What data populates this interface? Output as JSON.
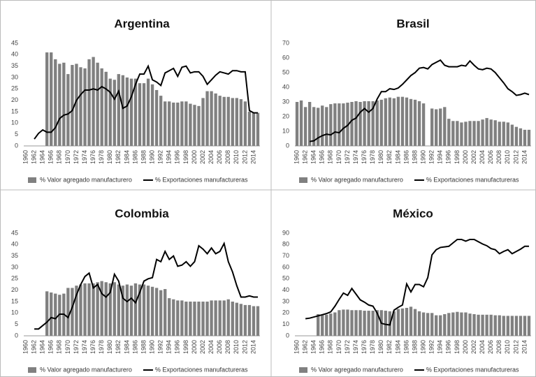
{
  "chart_data": [
    {
      "type": "combo",
      "title": "Argentina",
      "categories": [
        "1960",
        null,
        "1962",
        null,
        "1964",
        null,
        "1966",
        null,
        "1968",
        null,
        "1970",
        null,
        "1972",
        null,
        "1974",
        null,
        "1976",
        null,
        "1978",
        null,
        "1980",
        null,
        "1982",
        null,
        "1984",
        null,
        "1986",
        null,
        "1988",
        null,
        "1990",
        null,
        "1992",
        null,
        "1994",
        null,
        "1996",
        null,
        "1998",
        null,
        "2000",
        null,
        "2002",
        null,
        "2004",
        null,
        "2006",
        null,
        "2008",
        null,
        "2010",
        null,
        "2012",
        null,
        "2014",
        null
      ],
      "ylim": [
        0,
        45
      ],
      "yticks": [
        0,
        5,
        10,
        15,
        20,
        25,
        30,
        35,
        40,
        45
      ],
      "grid": false,
      "series": [
        {
          "name": "% Valor agregado manufacturero",
          "type": "bar",
          "color": "#808080",
          "values": [
            null,
            null,
            null,
            null,
            null,
            41,
            41,
            38,
            36,
            36.5,
            31.5,
            35.5,
            36,
            34.5,
            34,
            38,
            39,
            36.5,
            34,
            32.5,
            29.5,
            29,
            31.5,
            31,
            30,
            29.5,
            29.5,
            27.5,
            27.5,
            29.5,
            27,
            24.5,
            22,
            19.5,
            19.5,
            19,
            19,
            19.5,
            19.5,
            18.5,
            18,
            17.5,
            21,
            24,
            24,
            23,
            22,
            21.5,
            21.5,
            21,
            21,
            20.5,
            19.5,
            15,
            14.5,
            14.5
          ]
        },
        {
          "name": "% Exportaciones manufactureras",
          "type": "line",
          "color": "#000000",
          "values": [
            null,
            null,
            3,
            5.5,
            7,
            6,
            6,
            8,
            12,
            13.5,
            14,
            15.5,
            20,
            22.5,
            24.5,
            24.5,
            25,
            24.5,
            26,
            25,
            23.5,
            20.5,
            24,
            16.5,
            17.5,
            21.5,
            27,
            31.5,
            31.5,
            35,
            29,
            28,
            26.5,
            32,
            33,
            34,
            30.5,
            34.5,
            35,
            32,
            32.5,
            32.5,
            30.5,
            27,
            29,
            31,
            32.5,
            32,
            31.5,
            33,
            33,
            32.5,
            32.5,
            15.5,
            14.5,
            14.5
          ]
        }
      ]
    },
    {
      "type": "combo",
      "title": "Brasil",
      "categories": [
        "1960",
        null,
        "1962",
        null,
        "1964",
        null,
        "1966",
        null,
        "1968",
        null,
        "1970",
        null,
        "1972",
        null,
        "1974",
        null,
        "1976",
        null,
        "1978",
        null,
        "1980",
        null,
        "1982",
        null,
        "1984",
        null,
        "1986",
        null,
        "1988",
        null,
        "1990",
        null,
        "1992",
        null,
        "1994",
        null,
        "1996",
        null,
        "1998",
        null,
        "2000",
        null,
        "2002",
        null,
        "2004",
        null,
        "2006",
        null,
        "2008",
        null,
        "2010",
        null,
        "2012",
        null,
        "2014",
        null
      ],
      "ylim": [
        0,
        70
      ],
      "yticks": [
        0,
        10,
        20,
        30,
        40,
        50,
        60,
        70
      ],
      "grid": false,
      "series": [
        {
          "name": "% Valor agregado manufacturero",
          "type": "bar",
          "color": "#808080",
          "values": [
            30,
            31,
            26.5,
            30,
            26.5,
            26,
            27.5,
            26.5,
            28.5,
            29,
            29,
            29,
            29.5,
            30,
            30.5,
            30,
            30.5,
            30.5,
            30.5,
            31,
            31.5,
            32.5,
            33,
            32.5,
            33.5,
            33.5,
            33,
            32,
            31.5,
            30.5,
            29,
            null,
            25.5,
            25,
            25.5,
            26.5,
            18.5,
            17,
            17,
            16,
            16.5,
            17,
            17,
            17,
            18,
            19,
            18,
            17.5,
            16.5,
            16.5,
            16,
            14.5,
            13,
            12,
            11,
            11
          ]
        },
        {
          "name": "% Exportaciones manufactureras",
          "type": "line",
          "color": "#000000",
          "values": [
            null,
            null,
            null,
            3,
            3.5,
            5.5,
            7,
            8,
            7.5,
            9.5,
            9,
            12,
            14,
            17.5,
            19,
            23,
            25.5,
            23,
            25.5,
            32,
            37,
            37,
            39,
            38.5,
            39.5,
            42,
            45,
            48,
            50,
            53,
            53.5,
            52.5,
            55.5,
            57,
            58.5,
            55,
            54,
            54,
            54,
            55,
            54.5,
            58,
            55,
            52.5,
            52,
            53,
            52.5,
            50,
            46.5,
            43,
            39,
            37,
            34.5,
            35,
            36,
            35
          ]
        }
      ]
    },
    {
      "type": "combo",
      "title": "Colombia",
      "categories": [
        "1960",
        null,
        "1962",
        null,
        "1964",
        null,
        "1966",
        null,
        "1968",
        null,
        "1970",
        null,
        "1972",
        null,
        "1974",
        null,
        "1976",
        null,
        "1978",
        null,
        "1980",
        null,
        "1982",
        null,
        "1984",
        null,
        "1986",
        null,
        "1988",
        null,
        "1990",
        null,
        "1992",
        null,
        "1994",
        null,
        "1996",
        null,
        "1998",
        null,
        "2000",
        null,
        "2002",
        null,
        "2004",
        null,
        "2006",
        null,
        "2008",
        null,
        "2010",
        null,
        "2012",
        null,
        "2014",
        null
      ],
      "ylim": [
        0,
        45
      ],
      "yticks": [
        0,
        5,
        10,
        15,
        20,
        25,
        30,
        35,
        40,
        45
      ],
      "grid": false,
      "series": [
        {
          "name": "% Valor agregado manufacturero",
          "type": "bar",
          "color": "#808080",
          "values": [
            null,
            null,
            null,
            null,
            null,
            19.5,
            19,
            18.5,
            18,
            18.5,
            21,
            21,
            22,
            22.5,
            23,
            23,
            23,
            23.5,
            24,
            23.5,
            23,
            23.5,
            22.5,
            22,
            22.5,
            22,
            23,
            22.5,
            22.5,
            22,
            21.5,
            21,
            20,
            20.5,
            16.5,
            16,
            15.5,
            15.5,
            15,
            15,
            15,
            15,
            15,
            15,
            15.5,
            15.5,
            15.5,
            15.5,
            16,
            15,
            14.5,
            14,
            13.5,
            13.5,
            13,
            13
          ]
        },
        {
          "name": "% Exportaciones manufactureras",
          "type": "line",
          "color": "#000000",
          "values": [
            null,
            null,
            3,
            3,
            4.5,
            6,
            8,
            7.5,
            9.5,
            9.5,
            8,
            12.5,
            18,
            22.5,
            26,
            27.5,
            21,
            22.5,
            18.5,
            17,
            19,
            27,
            24,
            16.5,
            15,
            16.5,
            14.5,
            19,
            24,
            25,
            25.5,
            33.5,
            32.5,
            37,
            33.5,
            35,
            30.5,
            31,
            32.5,
            30.5,
            32.5,
            39.5,
            38,
            36,
            38.5,
            36,
            37,
            40.5,
            32.5,
            28,
            22,
            17,
            17,
            17.5,
            17,
            17
          ]
        }
      ]
    },
    {
      "type": "combo",
      "title": "México",
      "categories": [
        "1960",
        null,
        "1962",
        null,
        "1964",
        null,
        "1966",
        null,
        "1968",
        null,
        "1970",
        null,
        "1972",
        null,
        "1974",
        null,
        "1976",
        null,
        "1978",
        null,
        "1980",
        null,
        "1982",
        null,
        "1984",
        null,
        "1986",
        null,
        "1988",
        null,
        "1990",
        null,
        "1992",
        null,
        "1994",
        null,
        "1996",
        null,
        "1998",
        null,
        "2000",
        null,
        "2002",
        null,
        "2004",
        null,
        "2006",
        null,
        "2008",
        null,
        "2010",
        null,
        "2012",
        null,
        "2014",
        null
      ],
      "ylim": [
        0,
        90
      ],
      "yticks": [
        0,
        10,
        20,
        30,
        40,
        50,
        60,
        70,
        80,
        90
      ],
      "grid": false,
      "series": [
        {
          "name": "% Valor agregado manufacturero",
          "type": "bar",
          "color": "#808080",
          "values": [
            null,
            null,
            null,
            null,
            null,
            19,
            18.5,
            18.5,
            19.5,
            20.5,
            22.5,
            23,
            23,
            22.5,
            22.5,
            22.5,
            22,
            22,
            22,
            22.5,
            22.5,
            22,
            21.5,
            21.5,
            23.5,
            24,
            24.5,
            25.5,
            23.5,
            21.5,
            20.5,
            20,
            20,
            18,
            18,
            19,
            20,
            20.5,
            21,
            20.5,
            20.5,
            19.5,
            19,
            18.5,
            18.5,
            18.5,
            18.5,
            18,
            18,
            17.5,
            17.5,
            17.5,
            17.5,
            17.5,
            17.5,
            17.5
          ]
        },
        {
          "name": "% Exportaciones manufactureras",
          "type": "line",
          "color": "#000000",
          "values": [
            null,
            null,
            15,
            15.5,
            16.5,
            17.5,
            18.5,
            19.5,
            21,
            26,
            32,
            37.5,
            35.5,
            41.5,
            36.5,
            31.5,
            29.5,
            27,
            26,
            20,
            11,
            10,
            9.5,
            22.5,
            25,
            27,
            45.5,
            38.5,
            45,
            45,
            43,
            51,
            71,
            75.5,
            77.5,
            78,
            78.5,
            81.5,
            84.5,
            84.5,
            83,
            84.5,
            84.5,
            82.5,
            80.5,
            79,
            76.5,
            75.5,
            72,
            74,
            75.5,
            72,
            74,
            76,
            78.5,
            78.5
          ]
        }
      ]
    }
  ]
}
